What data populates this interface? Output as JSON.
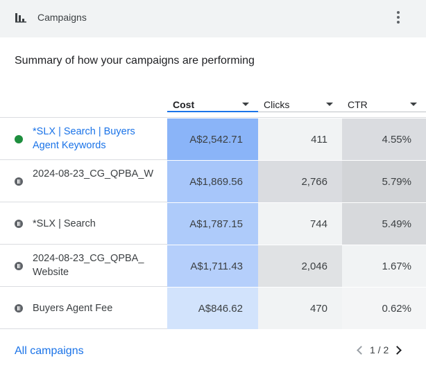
{
  "header": {
    "title": "Campaigns",
    "icon": "bar-chart-icon",
    "menu_icon": "more-vert-icon"
  },
  "summary": "Summary of how your campaigns are performing",
  "columns": {
    "cost": "Cost",
    "clicks": "Clicks",
    "ctr": "CTR"
  },
  "sorted_column": "Cost",
  "rows": [
    {
      "name": "*SLX | Search | Buyers Agent Keywords",
      "status": "enabled",
      "cost": "A$2,542.71",
      "clicks": "411",
      "ctr": "4.55%",
      "cost_shade": "#8ab4f8",
      "ctr_shade": "#dadce0"
    },
    {
      "name": "2024-08-23_CG_QPBA_W",
      "status": "paused",
      "cost": "A$1,869.56",
      "clicks": "2,766",
      "ctr": "5.79%",
      "cost_shade": "#a7c6fa",
      "clicks_shade": "#dadce0",
      "ctr_shade": "#d2d4d7"
    },
    {
      "name": "*SLX | Search",
      "status": "paused",
      "cost": "A$1,787.15",
      "clicks": "744",
      "ctr": "5.49%",
      "cost_shade": "#aecbfa",
      "ctr_shade": "#d7d9dc"
    },
    {
      "name": "2024-08-23_CG_QPBA_Website",
      "status": "paused",
      "cost": "A$1,711.43",
      "clicks": "2,046",
      "ctr": "1.67%",
      "cost_shade": "#b5cffb",
      "clicks_shade": "#e0e2e4",
      "ctr_shade": "#f1f3f4"
    },
    {
      "name": "Buyers Agent Fee",
      "status": "paused",
      "cost": "A$846.62",
      "clicks": "470",
      "ctr": "0.62%",
      "cost_shade": "#d2e3fc",
      "ctr_shade": "#f4f5f6"
    }
  ],
  "footer": {
    "link": "All campaigns",
    "page": "1 / 2"
  }
}
